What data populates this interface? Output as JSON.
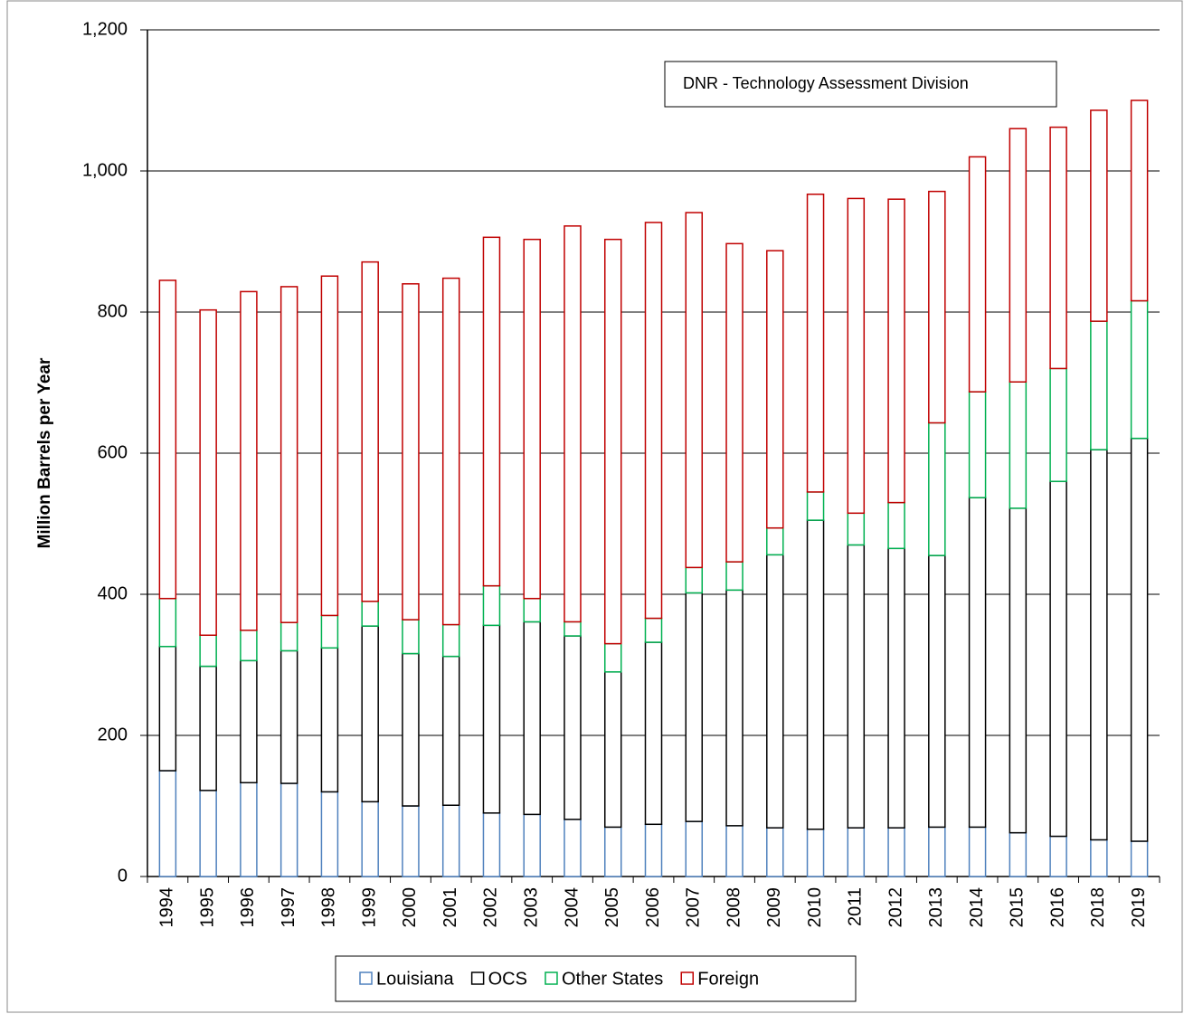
{
  "chart_data": {
    "type": "stacked_bar",
    "y_axis_label": "Million Barrels per Year",
    "annotation": "DNR - Technology Assessment Division",
    "categories": [
      "1994",
      "1995",
      "1996",
      "1997",
      "1998",
      "1999",
      "2000",
      "2001",
      "2002",
      "2003",
      "2004",
      "2005",
      "2006",
      "2007",
      "2008",
      "2009",
      "2010",
      "2011",
      "2012",
      "2013",
      "2014",
      "2015",
      "2016",
      "2018",
      "2019"
    ],
    "series": [
      {
        "name": "Louisiana",
        "color": "#4f81bd",
        "values": [
          150,
          122,
          133,
          132,
          120,
          106,
          100,
          101,
          90,
          88,
          81,
          70,
          74,
          78,
          72,
          69,
          67,
          69,
          69,
          70,
          70,
          62,
          57,
          52,
          50
        ]
      },
      {
        "name": "OCS",
        "color": "#000000",
        "values": [
          176,
          176,
          173,
          188,
          204,
          249,
          216,
          211,
          266,
          273,
          260,
          220,
          258,
          324,
          334,
          387,
          438,
          401,
          396,
          385,
          467,
          460,
          503,
          553,
          571
        ]
      },
      {
        "name": "Other States",
        "color": "#00b050",
        "values": [
          68,
          44,
          43,
          40,
          46,
          35,
          48,
          45,
          56,
          33,
          20,
          40,
          34,
          36,
          40,
          38,
          40,
          45,
          65,
          188,
          150,
          179,
          160,
          182,
          195
        ]
      },
      {
        "name": "Foreign",
        "color": "#c00000",
        "values": [
          451,
          461,
          480,
          476,
          481,
          481,
          476,
          491,
          494,
          509,
          561,
          573,
          561,
          503,
          451,
          393,
          422,
          446,
          430,
          328,
          333,
          359,
          342,
          299,
          284
        ]
      }
    ],
    "ylim": [
      0,
      1200
    ],
    "yticks": [
      0,
      200,
      400,
      600,
      800,
      {
        "value": 1000,
        "label": "1,000"
      },
      {
        "value": 1200,
        "label": "1,200"
      }
    ],
    "grid": true,
    "legend": "bottom"
  }
}
